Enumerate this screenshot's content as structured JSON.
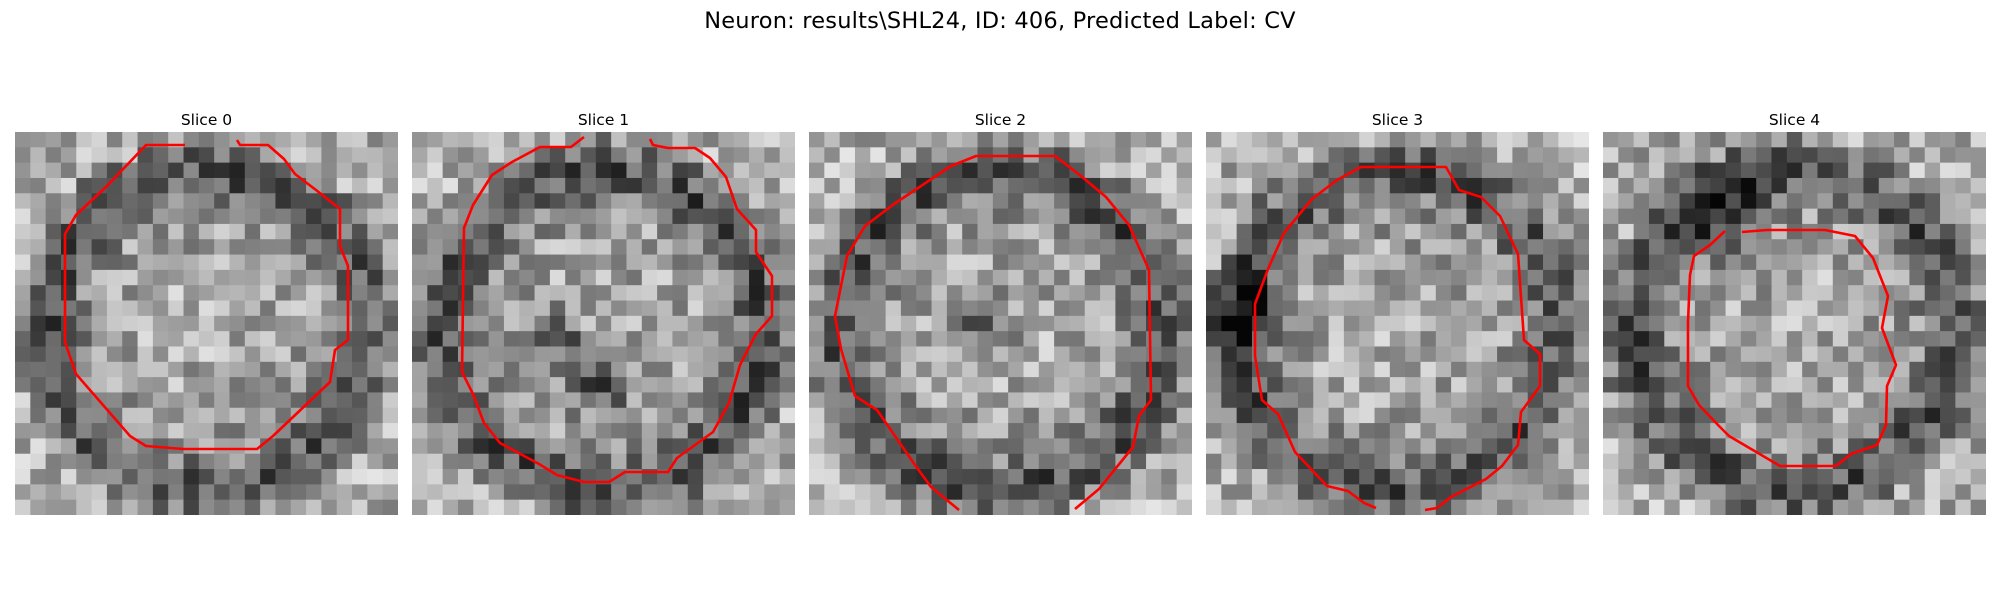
{
  "figure": {
    "title": "Neuron: results\\SHL24, ID: 406, Predicted Label: CV",
    "colormap": "gray",
    "contour_color": "#ff0000"
  },
  "panels": [
    {
      "title": "Slice 0",
      "seed": 11,
      "dark_ring": true,
      "bright_center": true,
      "dark_spots": []
    },
    {
      "title": "Slice 1",
      "seed": 23,
      "dark_ring": true,
      "bright_center": true,
      "dark_spots": [
        "nucleus-dark-left",
        "nucleus-dark-mid"
      ]
    },
    {
      "title": "Slice 2",
      "seed": 37,
      "dark_ring": true,
      "bright_center": true,
      "dark_spots": [
        "center-dark"
      ]
    },
    {
      "title": "Slice 3",
      "seed": 51,
      "dark_ring": true,
      "bright_center": true,
      "dark_spots": [
        "left-dark"
      ]
    },
    {
      "title": "Slice 4",
      "seed": 67,
      "dark_ring": true,
      "bright_center": true,
      "dark_spots": [
        "upper-dark"
      ]
    }
  ]
}
